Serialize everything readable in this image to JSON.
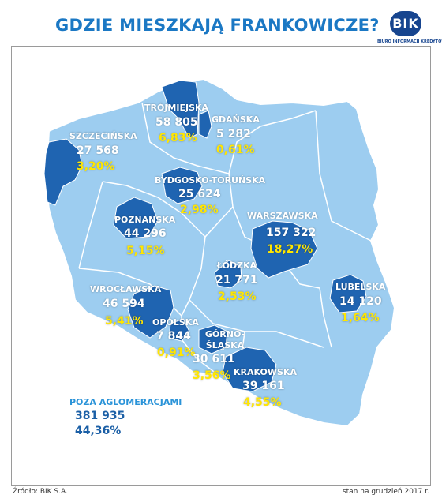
{
  "title": "GDZIE MIESZKAJĄ FRANKOWICZE?",
  "logo": {
    "badge": "BIK",
    "subtitle": "BIURO INFORMACJI KREDYTOWEJ"
  },
  "colors": {
    "country": "#9dcdf0",
    "region_highlight": "#1f64b1",
    "percent": "#ffe600",
    "title": "#1b78c4"
  },
  "regions": [
    {
      "id": "szczecinska",
      "name": "SZCZECIŃSKA",
      "count": "27 568",
      "share": "3,20%"
    },
    {
      "id": "trojmiejska",
      "name": "TRÓJMIEJSKA",
      "count": "58 805",
      "share": "6,83%"
    },
    {
      "id": "gdanska",
      "name": "GDAŃSKA",
      "count": "5 282",
      "share": "0,61%"
    },
    {
      "id": "bydgosko-torunska",
      "name": "BYDGOSKO-TORUŃSKA",
      "count": "25 624",
      "share": "2,98%"
    },
    {
      "id": "poznanska",
      "name": "POZNAŃSKA",
      "count": "44 296",
      "share": "5,15%"
    },
    {
      "id": "warszawska",
      "name": "WARSZAWSKA",
      "count": "157 322",
      "share": "18,27%"
    },
    {
      "id": "lodzka",
      "name": "ŁÓDZKA",
      "count": "21 771",
      "share": "2,53%"
    },
    {
      "id": "lubelska",
      "name": "LUBELSKA",
      "count": "14 120",
      "share": "1,64%"
    },
    {
      "id": "wroclawska",
      "name": "WROCŁAWSKA",
      "count": "46 594",
      "share": "5,41%"
    },
    {
      "id": "opolska",
      "name": "OPOLSKA",
      "count": "7 844",
      "share": "0,91%"
    },
    {
      "id": "gornoslaska",
      "name": "GÓRNO-ŚLĄSKA",
      "count": "30 611",
      "share": "3,56%"
    },
    {
      "id": "krakowska",
      "name": "KRAKOWSKA",
      "count": "39 161",
      "share": "4,55%"
    }
  ],
  "outside": {
    "label": "POZA AGLOMERACJAMI",
    "count": "381 935",
    "share": "44,36%"
  },
  "footer": {
    "source": "Źródło: BIK S.A.",
    "date": "stan na grudzień 2017 r."
  }
}
